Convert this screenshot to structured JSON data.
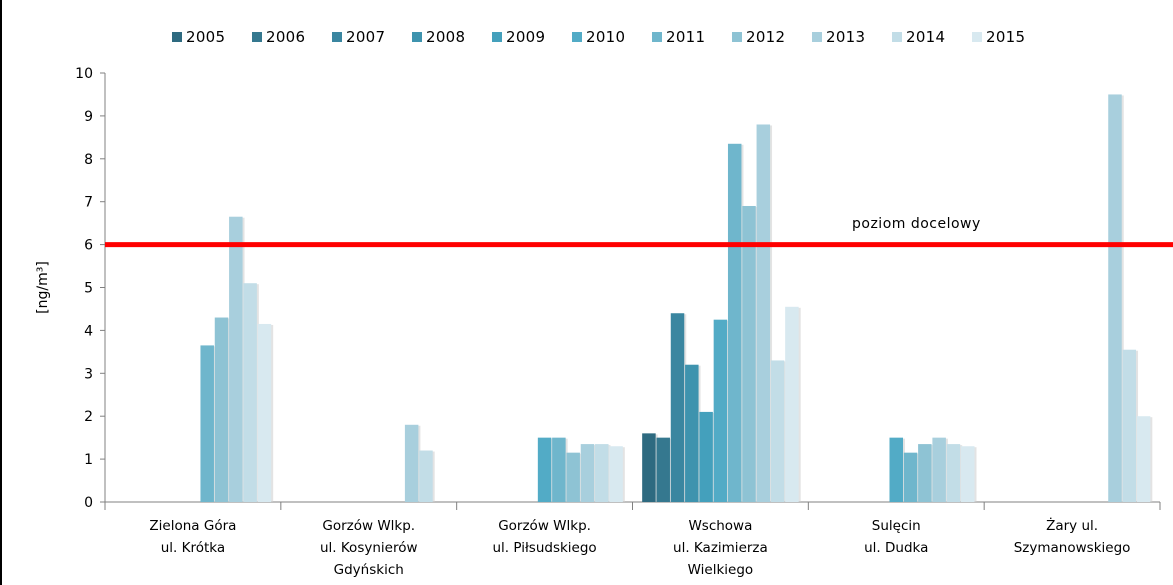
{
  "chart_data": {
    "type": "bar",
    "title": "",
    "xlabel": "",
    "ylabel": "[ng/m³]",
    "ylim": [
      0,
      10
    ],
    "yticks": [
      "0",
      "1",
      "2",
      "3",
      "4",
      "5",
      "6",
      "7",
      "8",
      "9",
      "10"
    ],
    "categories": [
      [
        "Zielona Góra",
        "ul. Krótka"
      ],
      [
        "Gorzów Wlkp.",
        "ul. Kosynierów",
        "Gdyńskich"
      ],
      [
        "Gorzów Wlkp.",
        "ul. Piłsudskiego"
      ],
      [
        "Wschowa",
        "ul. Kazimierza",
        "Wielkiego"
      ],
      [
        "Sulęcin",
        "ul. Dudka"
      ],
      [
        "Żary ul.",
        "Szymanowskiego"
      ]
    ],
    "series": [
      {
        "name": "2005",
        "color": "#2e6a80",
        "values": [
          null,
          null,
          null,
          1.6,
          null,
          null
        ]
      },
      {
        "name": "2006",
        "color": "#35788f",
        "values": [
          null,
          null,
          null,
          1.5,
          null,
          null
        ]
      },
      {
        "name": "2007",
        "color": "#3a86a0",
        "values": [
          null,
          null,
          null,
          4.4,
          null,
          null
        ]
      },
      {
        "name": "2008",
        "color": "#3e93ae",
        "values": [
          null,
          null,
          null,
          3.2,
          null,
          null
        ]
      },
      {
        "name": "2009",
        "color": "#44a0bc",
        "values": [
          null,
          null,
          null,
          2.1,
          null,
          null
        ]
      },
      {
        "name": "2010",
        "color": "#52abc6",
        "values": [
          null,
          null,
          1.5,
          4.25,
          1.5,
          null
        ]
      },
      {
        "name": "2011",
        "color": "#6fb6cc",
        "values": [
          3.65,
          null,
          1.5,
          8.35,
          1.15,
          null
        ]
      },
      {
        "name": "2012",
        "color": "#8ec3d4",
        "values": [
          4.3,
          null,
          1.15,
          6.9,
          1.35,
          null
        ]
      },
      {
        "name": "2013",
        "color": "#a8cfdd",
        "values": [
          6.65,
          1.8,
          1.35,
          8.8,
          1.5,
          9.5
        ]
      },
      {
        "name": "2014",
        "color": "#c2dde7",
        "values": [
          5.1,
          1.2,
          1.35,
          3.3,
          1.35,
          3.55
        ]
      },
      {
        "name": "2015",
        "color": "#d8e9f0",
        "values": [
          4.15,
          null,
          1.3,
          4.55,
          1.3,
          2.0
        ]
      }
    ],
    "threshold": {
      "value": 6,
      "label": "poziom docelowy",
      "color": "#ff0000"
    },
    "grid": false,
    "legend_position": "top"
  }
}
